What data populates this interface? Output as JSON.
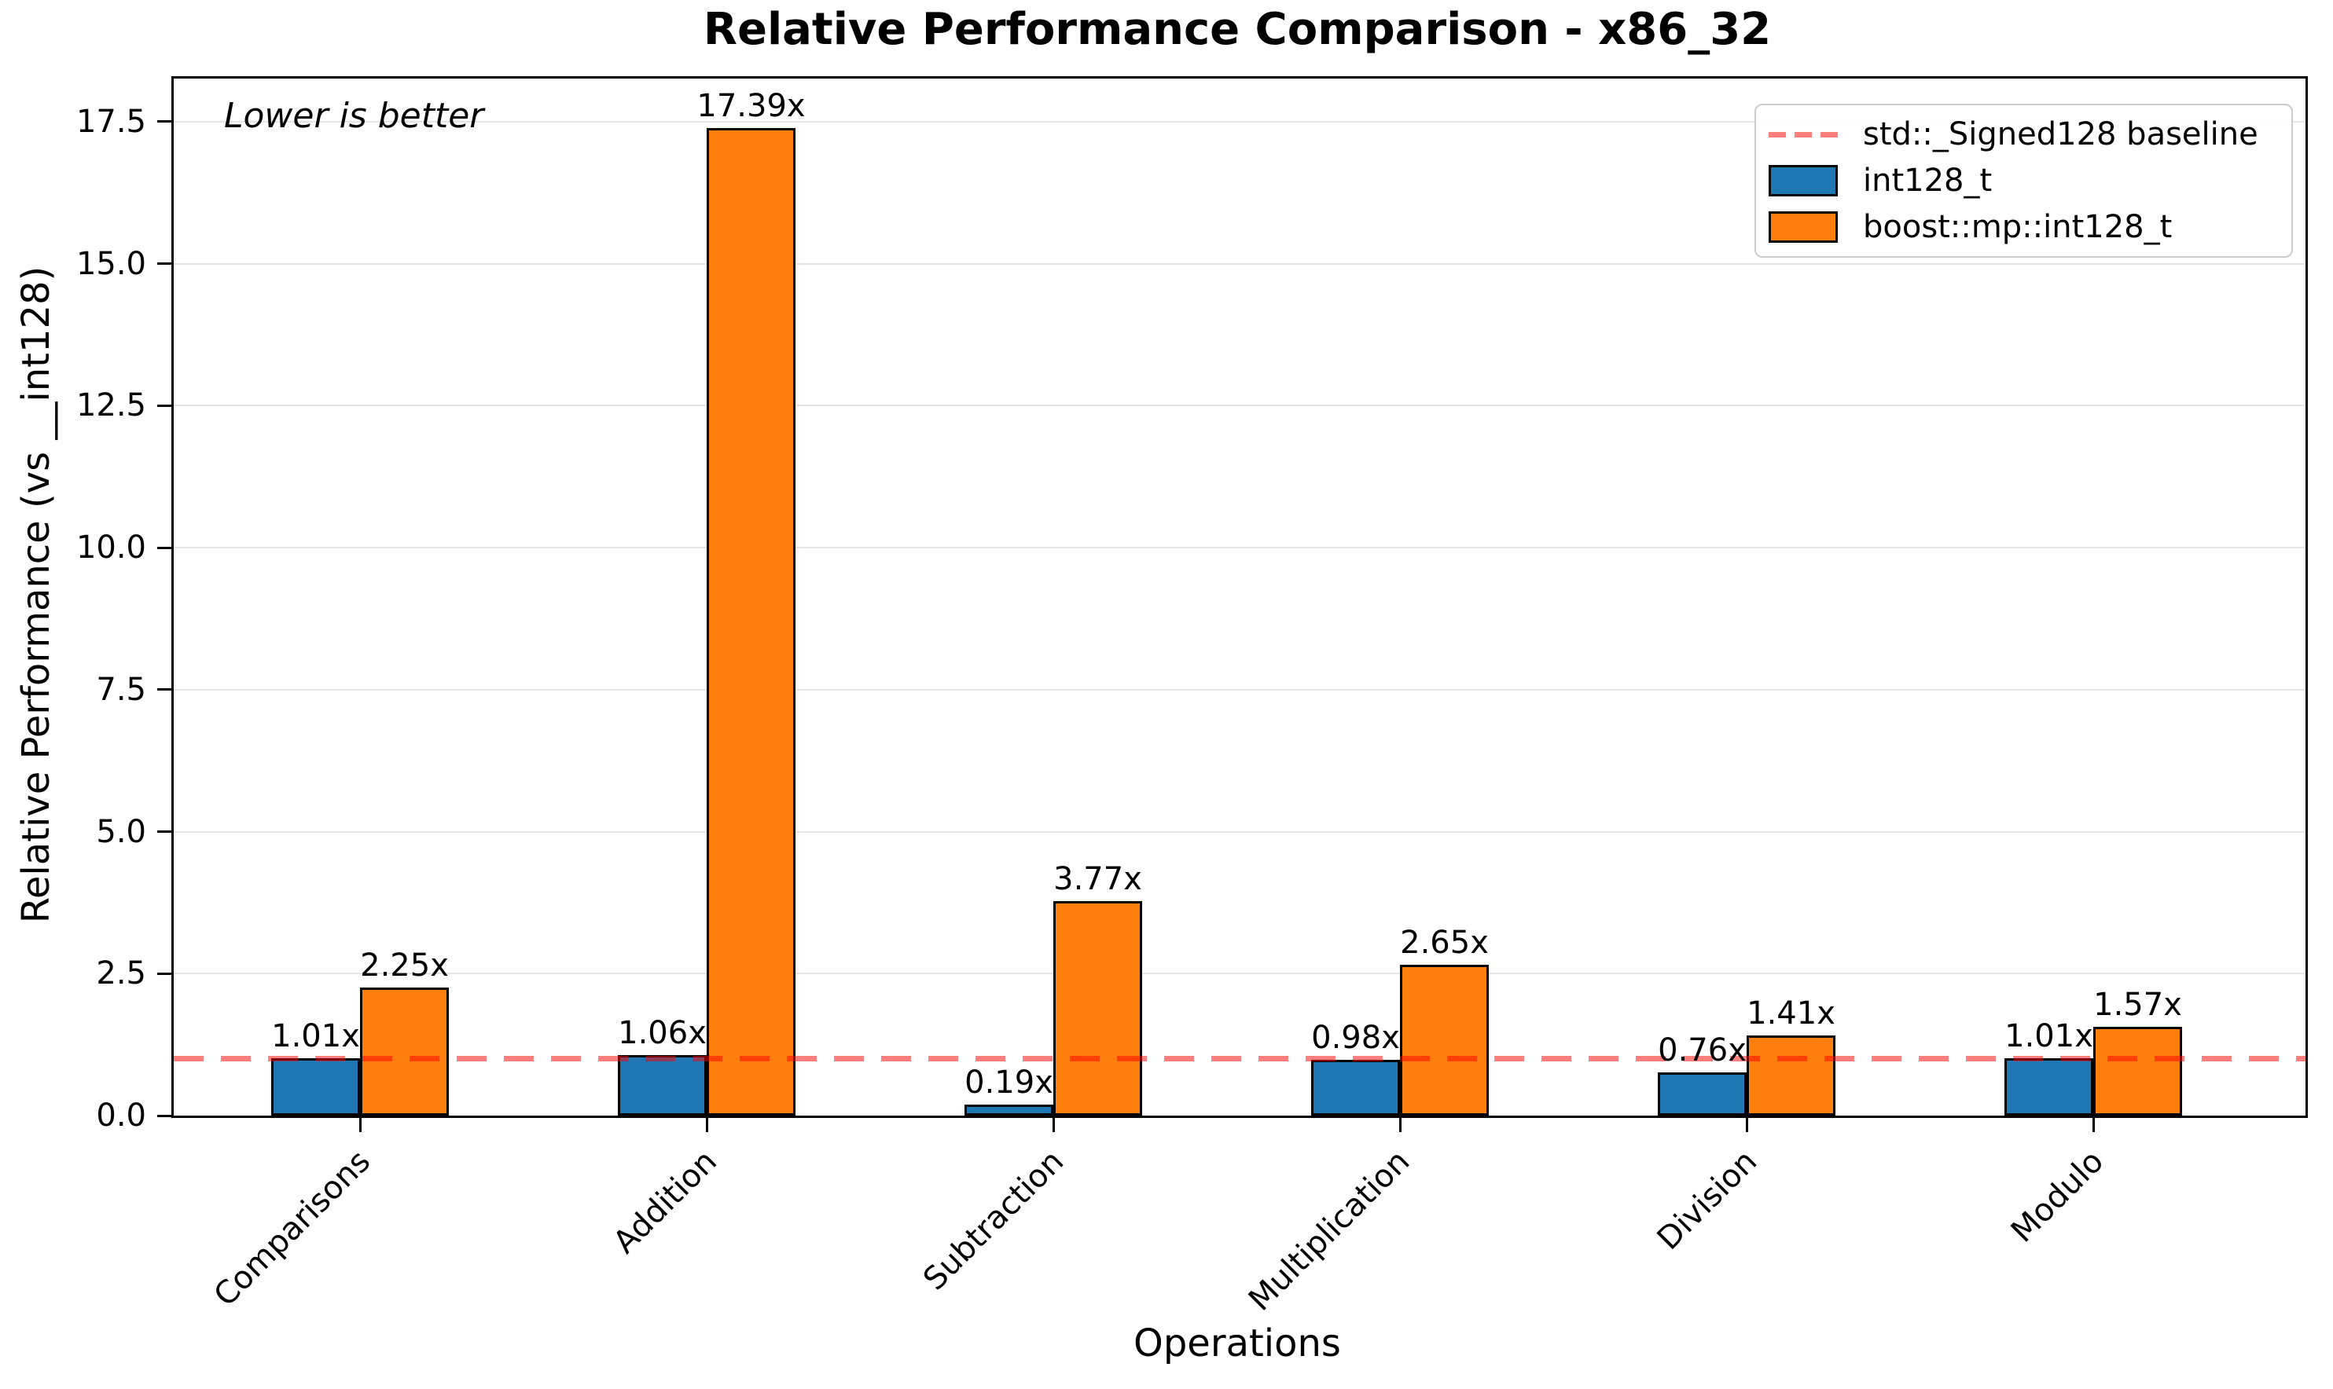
{
  "chart_data": {
    "type": "bar",
    "title": "Relative Performance Comparison - x86_32",
    "xlabel": "Operations",
    "ylabel": "Relative Performance (vs __int128)",
    "annotation": "Lower is better",
    "categories": [
      "Comparisons",
      "Addition",
      "Subtraction",
      "Multiplication",
      "Division",
      "Modulo"
    ],
    "series": [
      {
        "name": "int128_t",
        "color": "#1f77b4",
        "values": [
          1.01,
          1.06,
          0.19,
          0.98,
          0.76,
          1.01
        ],
        "labels": [
          "1.01x",
          "1.06x",
          "0.19x",
          "0.98x",
          "0.76x",
          "1.01x"
        ]
      },
      {
        "name": "boost::mp::int128_t",
        "color": "#ff7f0e",
        "values": [
          2.25,
          17.39,
          3.77,
          2.65,
          1.41,
          1.57
        ],
        "labels": [
          "2.25x",
          "17.39x",
          "3.77x",
          "2.65x",
          "1.41x",
          "1.57x"
        ]
      }
    ],
    "baseline": {
      "value": 1.0,
      "label": "std::_Signed128 baseline",
      "color": "#ff0000",
      "alpha": 0.5,
      "style": "dashed"
    },
    "yticks": [
      0.0,
      2.5,
      5.0,
      7.5,
      10.0,
      12.5,
      15.0,
      17.5
    ],
    "ytick_labels": [
      "0.0",
      "2.5",
      "5.0",
      "7.5",
      "10.0",
      "12.5",
      "15.0",
      "17.5"
    ],
    "ylim": [
      0,
      18.26
    ],
    "grid": "horizontal",
    "grid_color": "#e5e5e5",
    "legend_position": "upper right",
    "legend": {
      "entries": [
        {
          "label": "std::_Signed128 baseline",
          "swatch": "dashed-line",
          "color": "#fc7f7f"
        },
        {
          "label": "int128_t",
          "swatch": "rect",
          "color": "#1f77b4"
        },
        {
          "label": "boost::mp::int128_t",
          "swatch": "rect",
          "color": "#ff7f0e"
        }
      ]
    }
  }
}
